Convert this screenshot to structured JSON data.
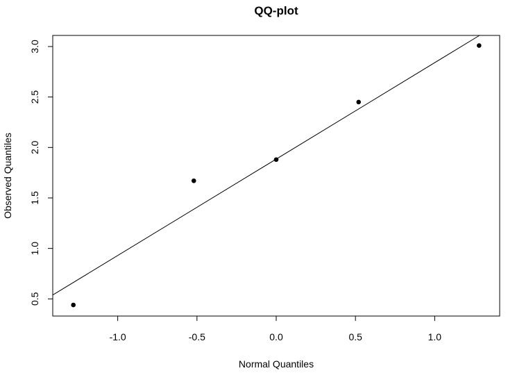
{
  "chart_data": {
    "type": "scatter",
    "title": "QQ-plot",
    "xlabel": "Normal Quantiles",
    "ylabel": "Observed Quantiles",
    "xlim": [
      -1.41,
      1.41
    ],
    "ylim": [
      0.33,
      3.11
    ],
    "x_ticks": [
      -1.0,
      -0.5,
      0.0,
      0.5,
      1.0
    ],
    "x_tick_labels": [
      "-1.0",
      "-0.5",
      "0.0",
      "0.5",
      "1.0"
    ],
    "y_ticks": [
      0.5,
      1.0,
      1.5,
      2.0,
      2.5,
      3.0
    ],
    "y_tick_labels": [
      "0.5",
      "1.0",
      "1.5",
      "2.0",
      "2.5",
      "3.0"
    ],
    "points": [
      {
        "x": -1.28,
        "y": 0.44
      },
      {
        "x": -0.52,
        "y": 1.67
      },
      {
        "x": 0.0,
        "y": 1.88
      },
      {
        "x": 0.52,
        "y": 2.45
      },
      {
        "x": 1.28,
        "y": 3.01
      }
    ],
    "reference_line": {
      "intercept": 1.885,
      "slope": 0.955
    },
    "grid": false,
    "legend": false
  }
}
